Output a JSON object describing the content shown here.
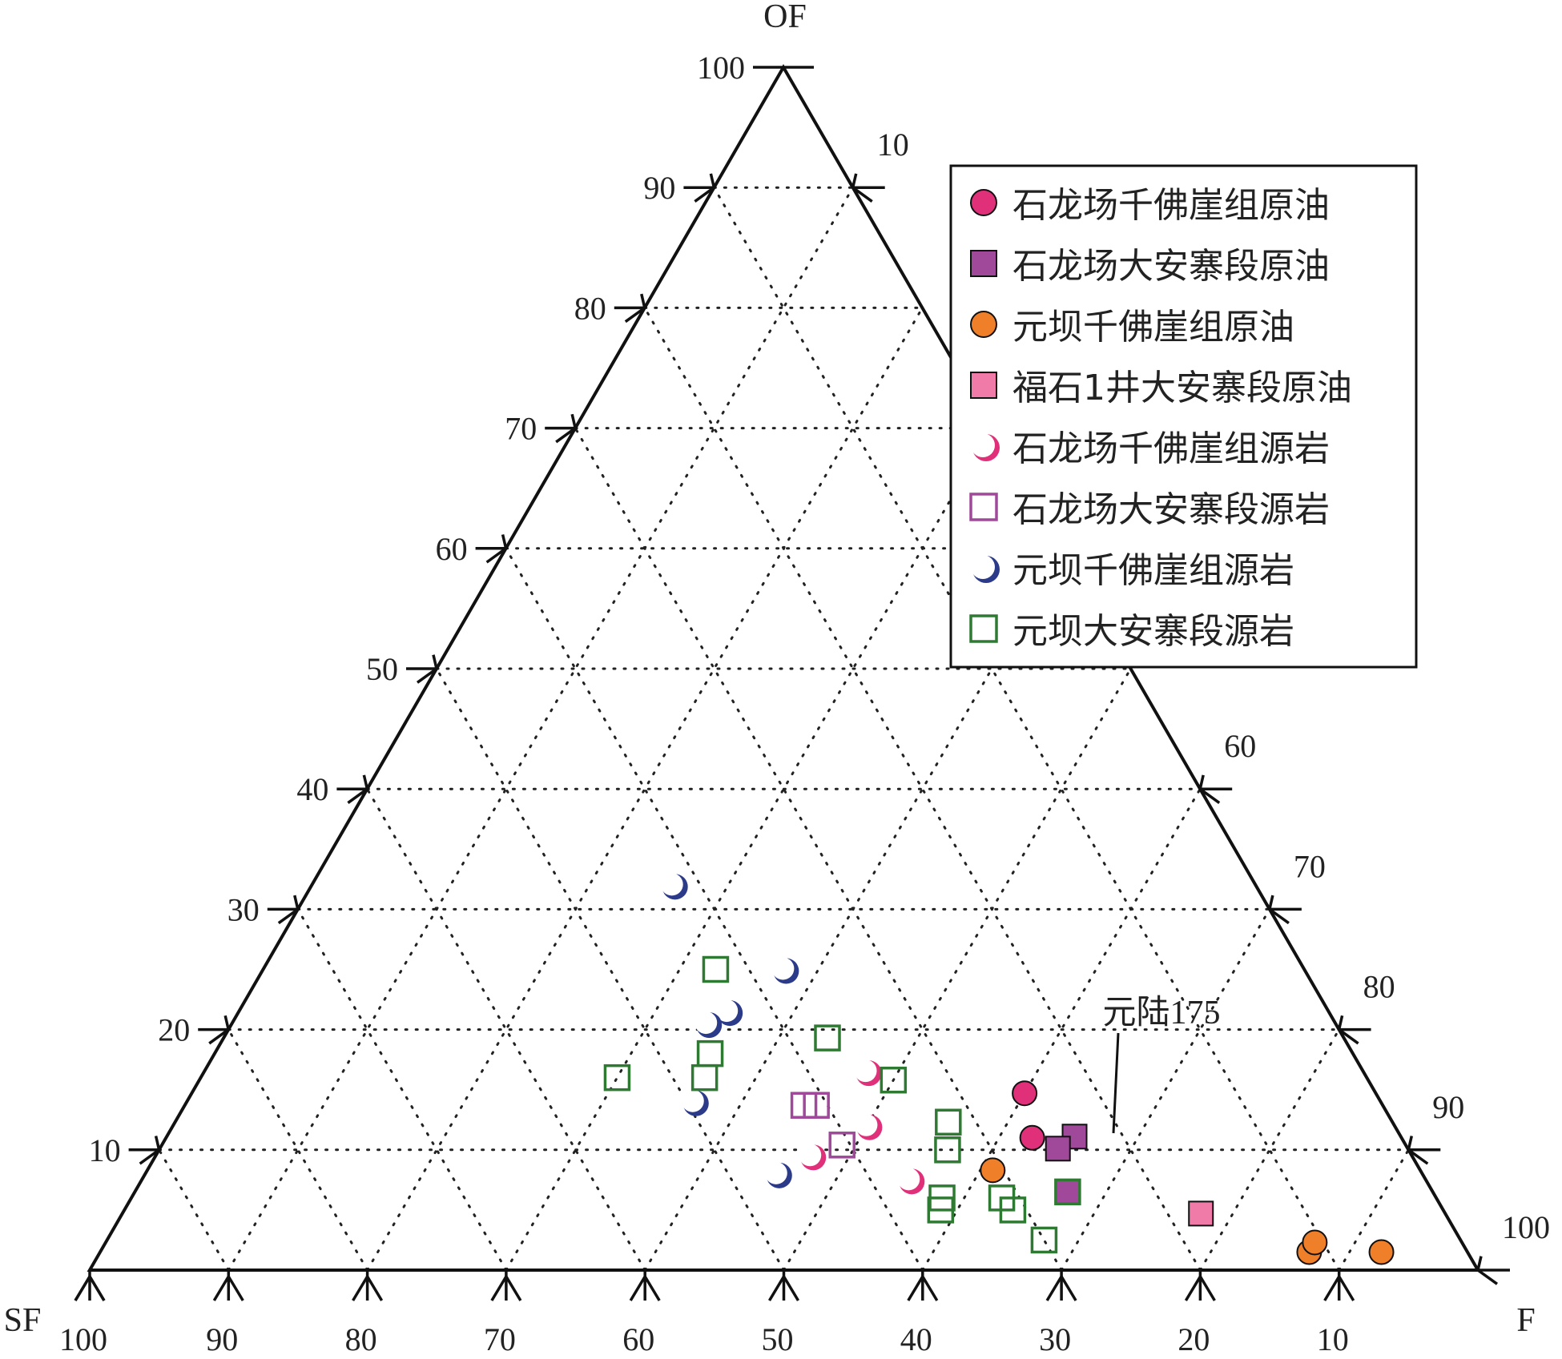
{
  "chart_data": {
    "type": "scatter",
    "subtype": "ternary",
    "apex_labels": {
      "top": "OF",
      "left": "SF",
      "right": "F"
    },
    "axes": {
      "OF": {
        "ticks": [
          10,
          20,
          30,
          40,
          50,
          60,
          70,
          80,
          90,
          100
        ],
        "tick_labels": [
          "10",
          "20",
          "30",
          "40",
          "50",
          "60",
          "70",
          "80",
          "90",
          "100"
        ]
      },
      "SF": {
        "ticks": [
          100,
          90,
          80,
          70,
          60,
          50,
          40,
          30,
          20,
          10
        ],
        "tick_labels": [
          "100",
          "90",
          "80",
          "70",
          "60",
          "50",
          "40",
          "30",
          "20",
          "10"
        ]
      },
      "F": {
        "ticks": [
          10,
          60,
          70,
          80,
          90,
          100
        ],
        "tick_labels": [
          "10",
          "60",
          "70",
          "80",
          "90",
          "100"
        ]
      }
    },
    "grid": true,
    "legend_position": "top-right",
    "annotation": {
      "text": "元陆175"
    },
    "series": [
      {
        "name": "石龙场千佛崖组原油",
        "marker": "circle-filled",
        "color": "#e0307a",
        "points": [
          {
            "OF": 14.7,
            "SF": 25.3,
            "F": 60.0
          },
          {
            "OF": 11.0,
            "SF": 26.6,
            "F": 62.4
          }
        ]
      },
      {
        "name": "石龙场大安寨段原油",
        "marker": "square-filled",
        "color": "#a0489a",
        "points": [
          {
            "OF": 11.1,
            "SF": 23.5,
            "F": 65.4
          },
          {
            "OF": 10.1,
            "SF": 25.2,
            "F": 64.7
          },
          {
            "OF": 6.5,
            "SF": 26.3,
            "F": 67.2
          }
        ]
      },
      {
        "name": "元坝千佛崖组原油",
        "marker": "circle-filled",
        "color": "#f07f2a",
        "points": [
          {
            "OF": 8.3,
            "SF": 30.8,
            "F": 60.9
          },
          {
            "OF": 1.5,
            "SF": 11.4,
            "F": 87.1
          },
          {
            "OF": 2.3,
            "SF": 10.6,
            "F": 87.1
          },
          {
            "OF": 1.5,
            "SF": 6.2,
            "F": 92.3
          }
        ]
      },
      {
        "name": "福石1井大安寨段原油",
        "marker": "square-filled",
        "color": "#f07aa8",
        "points": [
          {
            "OF": 4.7,
            "SF": 17.6,
            "F": 77.7
          }
        ]
      },
      {
        "name": "石龙场千佛崖组源岩",
        "marker": "circle-open",
        "color": "#e0307a",
        "points": [
          {
            "OF": 16.5,
            "SF": 35.8,
            "F": 47.7
          },
          {
            "OF": 12.0,
            "SF": 38.0,
            "F": 50.0
          },
          {
            "OF": 9.5,
            "SF": 43.3,
            "F": 47.2
          },
          {
            "OF": 7.5,
            "SF": 37.2,
            "F": 55.3
          }
        ]
      },
      {
        "name": "石龙场大安寨段源岩",
        "marker": "square-open",
        "color": "#a0489a",
        "points": [
          {
            "OF": 13.7,
            "SF": 41.7,
            "F": 44.6
          },
          {
            "OF": 13.7,
            "SF": 40.8,
            "F": 45.5
          },
          {
            "OF": 10.4,
            "SF": 40.6,
            "F": 49.0
          }
        ]
      },
      {
        "name": "元坝千佛崖组源岩",
        "marker": "circle-open",
        "color": "#2b3b8a",
        "points": [
          {
            "OF": 32.0,
            "SF": 42.0,
            "F": 26.0
          },
          {
            "OF": 25.0,
            "SF": 37.5,
            "F": 37.5
          },
          {
            "OF": 21.5,
            "SF": 43.3,
            "F": 35.2
          },
          {
            "OF": 20.5,
            "SF": 45.3,
            "F": 34.2
          },
          {
            "OF": 14.0,
            "SF": 49.5,
            "F": 36.5
          },
          {
            "OF": 8.0,
            "SF": 46.5,
            "F": 45.5
          }
        ]
      },
      {
        "name": "元坝大安寨段源岩",
        "marker": "square-open",
        "color": "#2f7a32",
        "points": [
          {
            "OF": 25.0,
            "SF": 42.4,
            "F": 32.6
          },
          {
            "OF": 19.3,
            "SF": 37.2,
            "F": 43.5
          },
          {
            "OF": 18.0,
            "SF": 46.3,
            "F": 35.7
          },
          {
            "OF": 16.0,
            "SF": 47.7,
            "F": 36.3
          },
          {
            "OF": 16.0,
            "SF": 54.0,
            "F": 30.0
          },
          {
            "OF": 15.8,
            "SF": 34.2,
            "F": 50.0
          },
          {
            "OF": 12.3,
            "SF": 32.0,
            "F": 55.7
          },
          {
            "OF": 10.0,
            "SF": 33.2,
            "F": 56.8
          },
          {
            "OF": 6.0,
            "SF": 35.6,
            "F": 58.4
          },
          {
            "OF": 5.0,
            "SF": 36.2,
            "F": 58.8
          },
          {
            "OF": 6.0,
            "SF": 31.3,
            "F": 62.7
          },
          {
            "OF": 5.0,
            "SF": 31.0,
            "F": 64.0
          },
          {
            "OF": 6.5,
            "SF": 26.3,
            "F": 67.2
          },
          {
            "OF": 2.5,
            "SF": 30.0,
            "F": 67.5
          }
        ]
      }
    ]
  }
}
